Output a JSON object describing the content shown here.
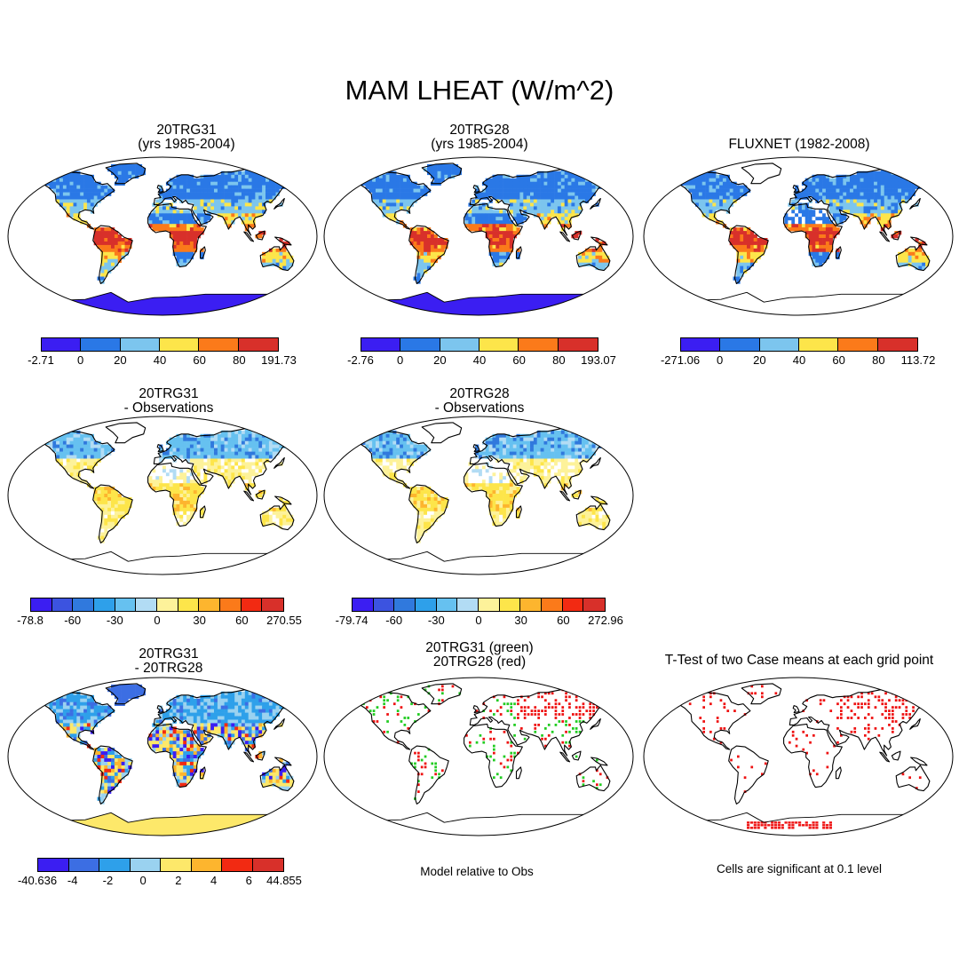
{
  "title": "MAM LHEAT (W/m^2)",
  "panels": {
    "p1": {
      "line1": "20TRG31",
      "line2": "(yrs 1985-2004)"
    },
    "p2": {
      "line1": "20TRG28",
      "line2": "(yrs 1985-2004)"
    },
    "p3": {
      "line1": "FLUXNET (1982-2008)"
    },
    "p4": {
      "line1": "20TRG31",
      "line2": "- Observations"
    },
    "p5": {
      "line1": "20TRG28",
      "line2": "- Observations"
    },
    "p6": {
      "line1": "20TRG31",
      "line2": "- 20TRG28"
    },
    "p7": {
      "line1": "20TRG31 (green)",
      "line2": "20TRG28 (red)"
    },
    "p8": {
      "line1": "T-Test of two Case means at each grid point"
    }
  },
  "colorbars": {
    "abs1": {
      "colors": [
        "#3b1ef2",
        "#2a78e6",
        "#7cc5ee",
        "#fde54a",
        "#fb7a1a",
        "#d8302a"
      ],
      "ticks": [
        "-2.71",
        "0",
        "20",
        "40",
        "60",
        "80",
        "191.73"
      ]
    },
    "abs2": {
      "colors": [
        "#3b1ef2",
        "#2a78e6",
        "#7cc5ee",
        "#fde54a",
        "#fb7a1a",
        "#d8302a"
      ],
      "ticks": [
        "-2.76",
        "0",
        "20",
        "40",
        "60",
        "80",
        "193.07"
      ]
    },
    "abs3": {
      "colors": [
        "#3b1ef2",
        "#2a78e6",
        "#7cc5ee",
        "#fde54a",
        "#fb7a1a",
        "#d8302a"
      ],
      "ticks": [
        "-271.06",
        "0",
        "20",
        "40",
        "60",
        "80",
        "113.72"
      ]
    },
    "diff1": {
      "colors": [
        "#3b1ef2",
        "#3c53e0",
        "#3079dd",
        "#2ea0ea",
        "#66c1f0",
        "#b2dcf4",
        "#fdf29a",
        "#fde54a",
        "#fdb52e",
        "#fb7a1a",
        "#f22a12",
        "#d8302a"
      ],
      "ticks": [
        "-78.8",
        "-60",
        "-30",
        "0",
        "30",
        "60",
        "270.55"
      ]
    },
    "diff2": {
      "colors": [
        "#3b1ef2",
        "#3c53e0",
        "#3079dd",
        "#2ea0ea",
        "#66c1f0",
        "#b2dcf4",
        "#fdf29a",
        "#fde54a",
        "#fdb52e",
        "#fb7a1a",
        "#f22a12",
        "#d8302a"
      ],
      "ticks": [
        "-79.74",
        "-60",
        "-30",
        "0",
        "30",
        "60",
        "272.96"
      ]
    },
    "diff3": {
      "colors": [
        "#3b1ef2",
        "#3c6ee3",
        "#2ea0ea",
        "#9ad2f0",
        "#fde86a",
        "#fdb52e",
        "#f22a12",
        "#d8302a"
      ],
      "ticks": [
        "-40.636",
        "-4",
        "-2",
        "0",
        "2",
        "4",
        "6",
        "44.855"
      ]
    }
  },
  "notes": {
    "model_relative": "Model relative to Obs",
    "significance": "Cells are significant at 0.1 level"
  }
}
